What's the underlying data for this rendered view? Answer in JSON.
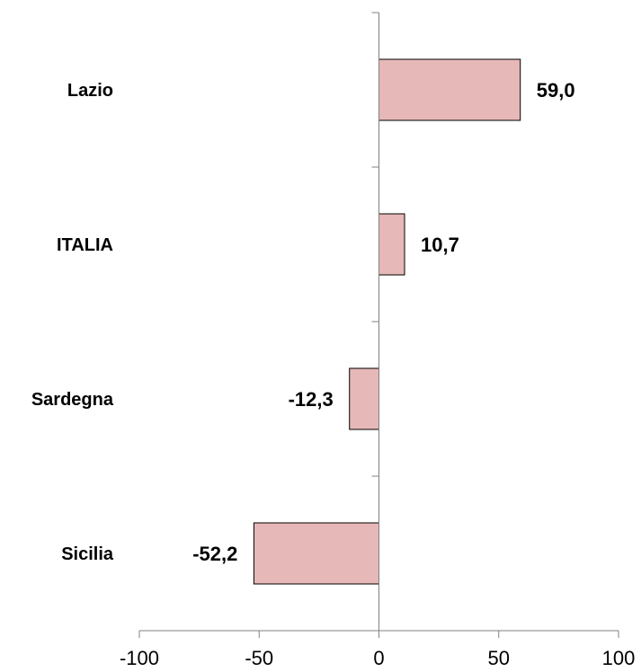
{
  "chart_data": {
    "type": "bar",
    "orientation": "horizontal",
    "categories": [
      "Lazio",
      "ITALIA",
      "Sardegna",
      "Sicilia"
    ],
    "values": [
      59.0,
      10.7,
      -12.3,
      -52.2
    ],
    "value_labels": [
      "59,0",
      "10,7",
      "-12,3",
      "-52,2"
    ],
    "xlim": [
      -100,
      100
    ],
    "xticks": [
      -100,
      -50,
      0,
      50,
      100
    ],
    "xtick_labels": [
      "-100",
      "-50",
      "0",
      "50",
      "100"
    ],
    "bar_color": "#e6b8b7",
    "bar_border_color": "#000000",
    "grid": false,
    "legend": "none"
  }
}
